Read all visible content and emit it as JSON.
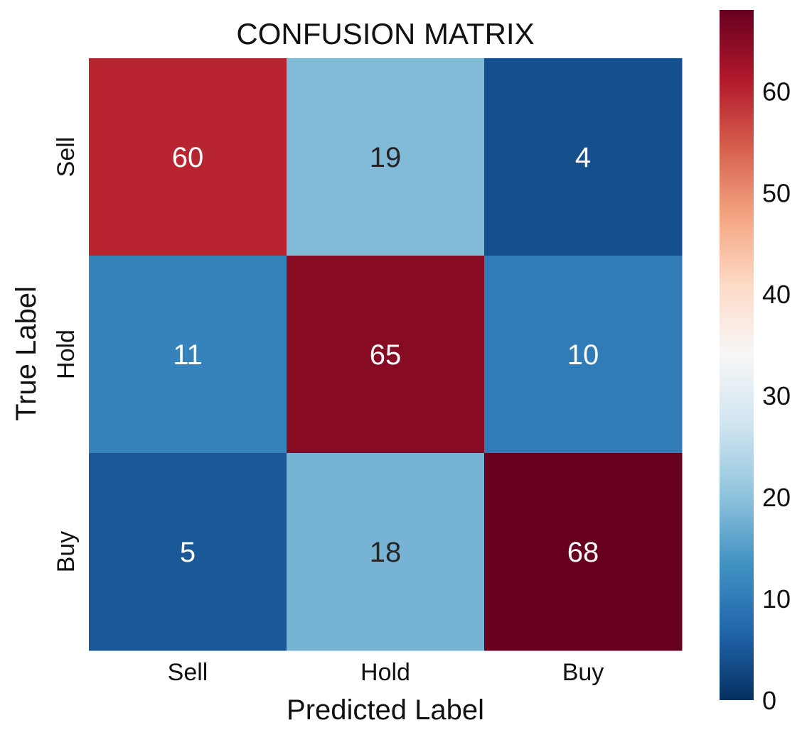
{
  "chart_data": {
    "type": "heatmap",
    "title": "CONFUSION MATRIX",
    "xlabel": "Predicted Label",
    "ylabel": "True Label",
    "x_categories": [
      "Sell",
      "Hold",
      "Buy"
    ],
    "y_categories": [
      "Sell",
      "Hold",
      "Buy"
    ],
    "values": [
      [
        60,
        19,
        4
      ],
      [
        11,
        65,
        10
      ],
      [
        5,
        18,
        68
      ]
    ],
    "colorbar": {
      "range": [
        0,
        68
      ],
      "ticks": [
        0,
        10,
        20,
        30,
        40,
        50,
        60
      ],
      "colormap": "RdBu_r"
    },
    "grid": false
  }
}
